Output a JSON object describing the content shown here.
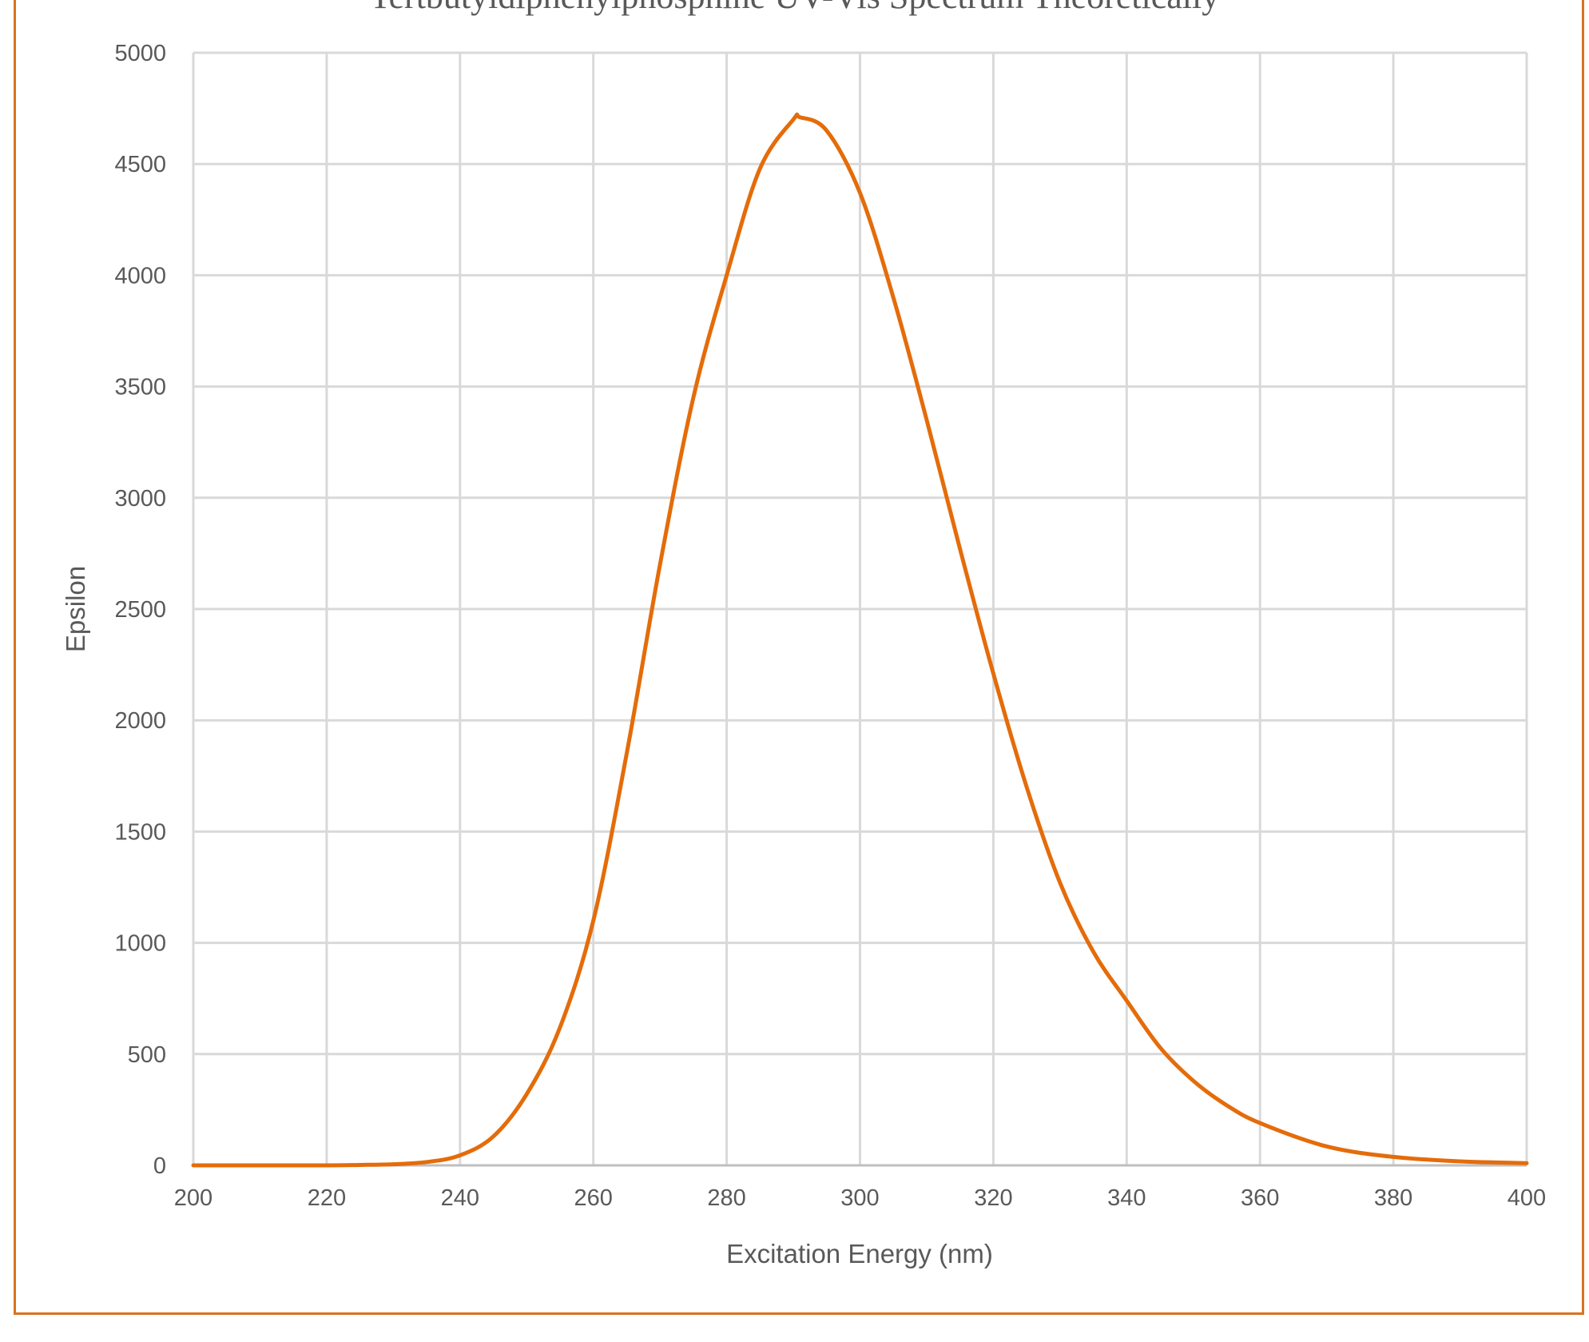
{
  "chart_data": {
    "type": "line",
    "title": "Tertbutyldiphenylphosphine UV-Vis Spectrum Theoretically",
    "xlabel": "Excitation Energy (nm)",
    "ylabel": "Epsilon",
    "xlim": [
      200,
      400
    ],
    "ylim": [
      0,
      5000
    ],
    "xticks": [
      200,
      220,
      240,
      260,
      280,
      300,
      320,
      340,
      360,
      380,
      400
    ],
    "yticks": [
      0,
      500,
      1000,
      1500,
      2000,
      2500,
      3000,
      3500,
      4000,
      4500,
      5000
    ],
    "grid": true,
    "legend": "none",
    "line_color": "#e46c0a",
    "frame_color": "#d9731f",
    "series": [
      {
        "x": [
          200,
          210,
          220,
          225,
          230,
          235,
          240,
          245,
          250,
          255,
          260,
          265,
          270,
          275,
          280,
          285,
          290,
          291,
          295,
          300,
          305,
          310,
          315,
          320,
          325,
          330,
          335,
          340,
          345,
          350,
          355,
          360,
          370,
          380,
          390,
          400
        ],
        "y": [
          0,
          0,
          0,
          2,
          5,
          15,
          45,
          130,
          320,
          620,
          1100,
          1850,
          2700,
          3450,
          4000,
          4480,
          4700,
          4710,
          4650,
          4370,
          3900,
          3350,
          2770,
          2210,
          1700,
          1270,
          960,
          740,
          530,
          380,
          270,
          190,
          85,
          38,
          18,
          10
        ]
      }
    ]
  }
}
